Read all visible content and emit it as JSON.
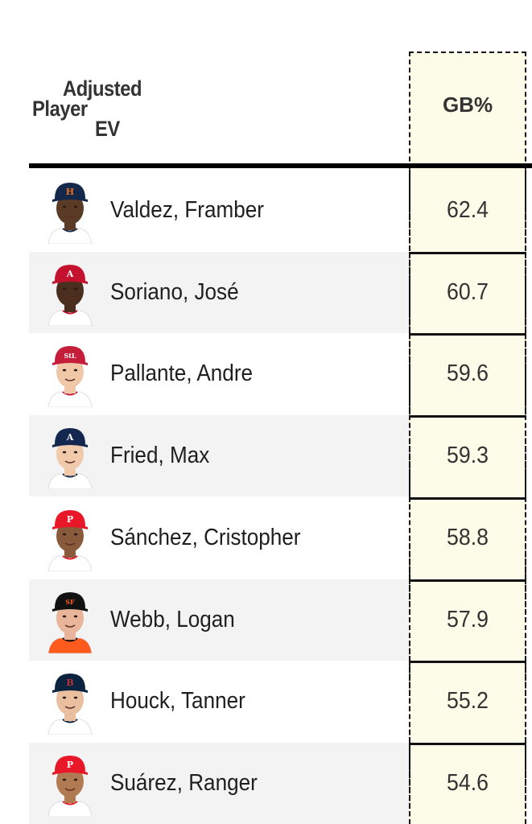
{
  "header": {
    "player_label": "Player",
    "adjusted_label": "Adjusted",
    "ev_label": "EV",
    "gb_label": "GB%"
  },
  "rows": [
    {
      "name": "Valdez, Framber",
      "gb": "62.4",
      "cap_color": "#13284a",
      "cap_logo": "H",
      "logo_color": "#eb6e1f",
      "skin": "#5a3b26",
      "jersey": "#ffffff"
    },
    {
      "name": "Soriano, José",
      "gb": "60.7",
      "cap_color": "#c4122e",
      "cap_logo": "A",
      "logo_color": "#ffffff",
      "skin": "#4a2f1f",
      "jersey": "#ffffff"
    },
    {
      "name": "Pallante, Andre",
      "gb": "59.6",
      "cap_color": "#c41e3a",
      "cap_logo": "StL",
      "logo_color": "#ffffff",
      "skin": "#f0c8a8",
      "jersey": "#ffffff"
    },
    {
      "name": "Fried, Max",
      "gb": "59.3",
      "cap_color": "#13274f",
      "cap_logo": "A",
      "logo_color": "#ffffff",
      "skin": "#f1c9ab",
      "jersey": "#ffffff"
    },
    {
      "name": "Sánchez, Cristopher",
      "gb": "58.8",
      "cap_color": "#e81828",
      "cap_logo": "P",
      "logo_color": "#ffffff",
      "skin": "#8a5a3c",
      "jersey": "#ffffff"
    },
    {
      "name": "Webb, Logan",
      "gb": "57.9",
      "cap_color": "#111111",
      "cap_logo": "SF",
      "logo_color": "#fd5a1e",
      "skin": "#e8b49a",
      "jersey": "#fd5a1e"
    },
    {
      "name": "Houck, Tanner",
      "gb": "55.2",
      "cap_color": "#0c2340",
      "cap_logo": "B",
      "logo_color": "#bd3039",
      "skin": "#e9bfa0",
      "jersey": "#ffffff"
    },
    {
      "name": "Suárez, Ranger",
      "gb": "54.6",
      "cap_color": "#e81828",
      "cap_logo": "P",
      "logo_color": "#ffffff",
      "skin": "#b07a52",
      "jersey": "#ffffff"
    }
  ]
}
